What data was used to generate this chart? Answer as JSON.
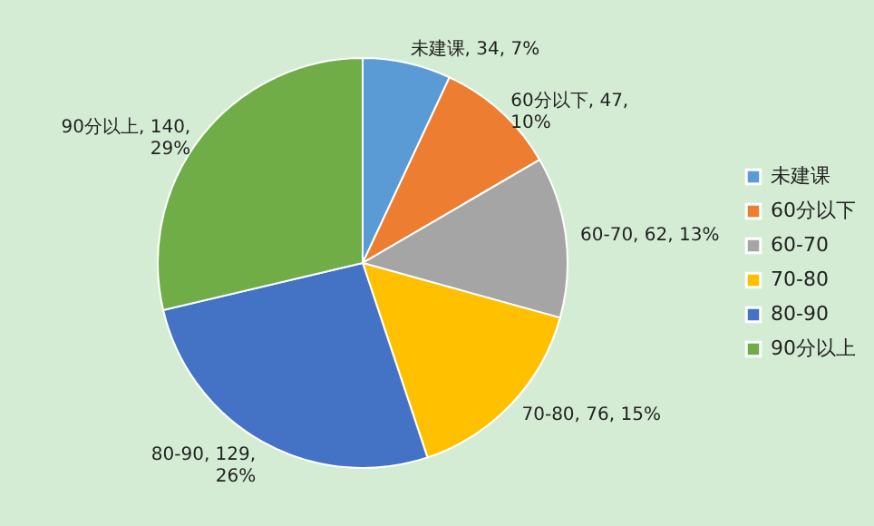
{
  "chart_data": {
    "type": "pie",
    "categories": [
      "未建课",
      "60分以下",
      "60-70",
      "70-80",
      "80-90",
      "90分以上"
    ],
    "values": [
      34,
      47,
      62,
      76,
      129,
      140
    ],
    "colors": [
      "#5b9bd5",
      "#ed7d31",
      "#a5a5a5",
      "#ffc000",
      "#4472c4",
      "#70ad47"
    ],
    "value_labels": [
      "未建课, 34, 7%",
      "60分以下, 47,\n10%",
      "60-70, 62, 13%",
      "70-80, 76, 15%",
      "80-90, 129,\n26%",
      "90分以上, 140,\n29%"
    ],
    "legend": "right"
  }
}
